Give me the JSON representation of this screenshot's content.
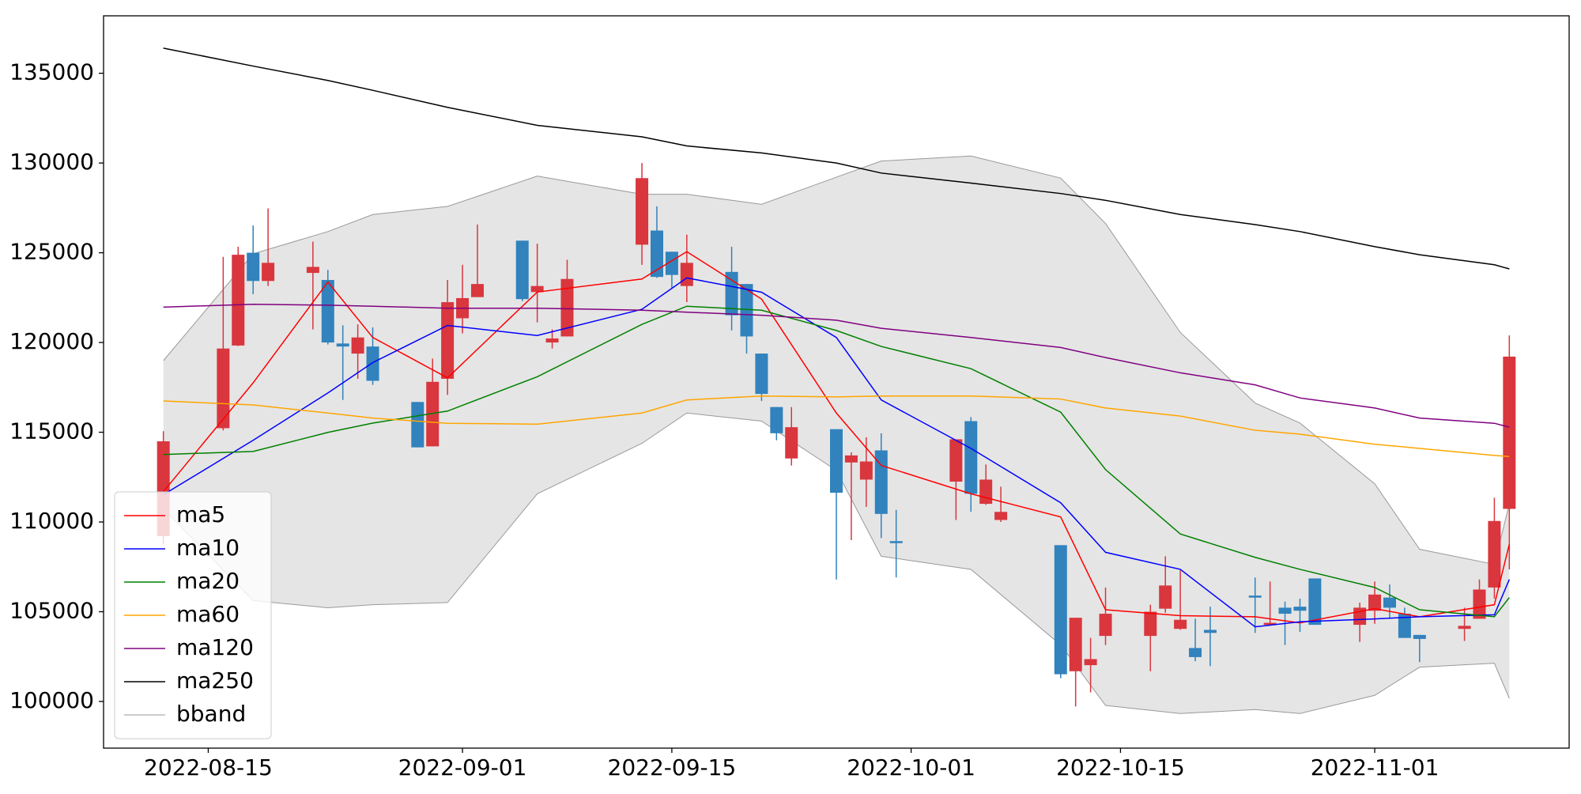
{
  "chart_data": {
    "type": "candlestick",
    "x": [
      "2022-08-12",
      "2022-08-16",
      "2022-08-17",
      "2022-08-18",
      "2022-08-19",
      "2022-08-22",
      "2022-08-23",
      "2022-08-24",
      "2022-08-25",
      "2022-08-26",
      "2022-08-29",
      "2022-08-30",
      "2022-08-31",
      "2022-09-01",
      "2022-09-02",
      "2022-09-05",
      "2022-09-06",
      "2022-09-07",
      "2022-09-08",
      "2022-09-13",
      "2022-09-14",
      "2022-09-15",
      "2022-09-16",
      "2022-09-19",
      "2022-09-20",
      "2022-09-21",
      "2022-09-22",
      "2022-09-23",
      "2022-09-26",
      "2022-09-27",
      "2022-09-28",
      "2022-09-29",
      "2022-09-30",
      "2022-10-04",
      "2022-10-05",
      "2022-10-06",
      "2022-10-07",
      "2022-10-11",
      "2022-10-12",
      "2022-10-13",
      "2022-10-14",
      "2022-10-17",
      "2022-10-18",
      "2022-10-19",
      "2022-10-20",
      "2022-10-21",
      "2022-10-24",
      "2022-10-25",
      "2022-10-26",
      "2022-10-27",
      "2022-10-28",
      "2022-10-31",
      "2022-11-01",
      "2022-11-02",
      "2022-11-03",
      "2022-11-04",
      "2022-11-07",
      "2022-11-08",
      "2022-11-09",
      "2022-11-10"
    ],
    "open": [
      109213,
      115225,
      119831,
      125000,
      123427,
      123876,
      123483,
      119944,
      119382,
      119775,
      116685,
      114213,
      117978,
      121348,
      122528,
      125674,
      122809,
      120000,
      120337,
      125449,
      126236,
      125056,
      123146,
      123933,
      123258,
      119382,
      116404,
      113539,
      115169,
      113315,
      112360,
      113989,
      108933,
      112247,
      115618,
      111011,
      110112,
      108708,
      101685,
      102022,
      103652,
      103652,
      105169,
      104045,
      102978,
      103989,
      105899,
      104270,
      105225,
      105281,
      106854,
      104270,
      105056,
      105787,
      104888,
      103708,
      104045,
      104607,
      106348,
      110730
    ],
    "high": [
      115056,
      124775,
      125337,
      126517,
      127472,
      125618,
      124045,
      120955,
      121011,
      120843,
      116685,
      119101,
      123483,
      124326,
      126573,
      125674,
      125505,
      120730,
      124607,
      130000,
      127584,
      125056,
      126011,
      125337,
      123258,
      119382,
      116404,
      116404,
      115169,
      113876,
      114719,
      114944,
      110674,
      114607,
      115843,
      113202,
      111966,
      108708,
      104663,
      103539,
      106348,
      105393,
      108090,
      107303,
      104607,
      105281,
      106910,
      106685,
      105562,
      105730,
      106854,
      105506,
      106685,
      106517,
      105225,
      103708,
      105225,
      106798,
      111348,
      120393
    ],
    "low": [
      108764,
      115100,
      119800,
      122697,
      123146,
      120730,
      119888,
      116798,
      117978,
      117641,
      114157,
      114213,
      117079,
      120506,
      122528,
      122303,
      121124,
      119663,
      120337,
      124326,
      123596,
      123034,
      122247,
      120674,
      119382,
      116742,
      114551,
      113146,
      106798,
      108989,
      110843,
      109101,
      106910,
      110112,
      110562,
      110955,
      110000,
      101292,
      99719,
      100506,
      103146,
      101685,
      104944,
      103989,
      102247,
      101966,
      103820,
      104213,
      103146,
      103876,
      104270,
      103315,
      104326,
      104607,
      103539,
      102191,
      103371,
      104607,
      105730,
      107360
    ],
    "close": [
      114494,
      119663,
      124888,
      123427,
      124438,
      124213,
      120000,
      119775,
      120281,
      117865,
      114157,
      117809,
      122247,
      122472,
      123258,
      122416,
      123146,
      120225,
      123539,
      129157,
      123652,
      123764,
      124438,
      121517,
      120337,
      117135,
      114944,
      115281,
      111629,
      113708,
      113371,
      110449,
      108820,
      114607,
      111573,
      112360,
      110562,
      101517,
      104663,
      102360,
      104888,
      105000,
      106461,
      104551,
      102472,
      103820,
      105787,
      104382,
      104888,
      105056,
      104270,
      105225,
      105955,
      105225,
      103539,
      103483,
      104213,
      106236,
      110056,
      119213
    ],
    "up_color": "#d9363e",
    "down_color": "#3182bd",
    "lines": [
      {
        "name": "ma5",
        "color": "#ff0000",
        "x": [
          "2022-08-12",
          "2022-08-18",
          "2022-08-23",
          "2022-08-26",
          "2022-08-31",
          "2022-09-06",
          "2022-09-13",
          "2022-09-16",
          "2022-09-21",
          "2022-09-26",
          "2022-09-29",
          "2022-10-05",
          "2022-10-11",
          "2022-10-14",
          "2022-10-19",
          "2022-10-24",
          "2022-10-27",
          "2022-11-01",
          "2022-11-04",
          "2022-11-09",
          "2022-11-10"
        ],
        "values": [
          111690,
          117750,
          123370,
          120280,
          118030,
          122810,
          123540,
          125060,
          122420,
          116070,
          113150,
          111570,
          110280,
          105110,
          104780,
          104720,
          104380,
          105170,
          104720,
          105390,
          108760
        ]
      },
      {
        "name": "ma10",
        "color": "#0000ff",
        "x": [
          "2022-08-12",
          "2022-08-18",
          "2022-08-23",
          "2022-08-26",
          "2022-08-31",
          "2022-09-06",
          "2022-09-13",
          "2022-09-16",
          "2022-09-21",
          "2022-09-26",
          "2022-09-29",
          "2022-10-05",
          "2022-10-11",
          "2022-10-14",
          "2022-10-19",
          "2022-10-24",
          "2022-10-27",
          "2022-11-01",
          "2022-11-04",
          "2022-11-09",
          "2022-11-10"
        ],
        "values": [
          111520,
          114550,
          117190,
          118880,
          120950,
          120390,
          121850,
          123600,
          122800,
          120280,
          116800,
          114100,
          111070,
          108310,
          107360,
          104160,
          104440,
          104600,
          104720,
          104830,
          106800
        ]
      },
      {
        "name": "ma20",
        "color": "#008000",
        "x": [
          "2022-08-12",
          "2022-08-18",
          "2022-08-23",
          "2022-08-26",
          "2022-08-31",
          "2022-09-06",
          "2022-09-13",
          "2022-09-16",
          "2022-09-21",
          "2022-09-26",
          "2022-09-29",
          "2022-10-05",
          "2022-10-11",
          "2022-10-14",
          "2022-10-19",
          "2022-10-24",
          "2022-10-27",
          "2022-11-01",
          "2022-11-04",
          "2022-11-09",
          "2022-11-10"
        ],
        "values": [
          113760,
          113930,
          114990,
          115510,
          116180,
          118090,
          121010,
          122020,
          121800,
          120670,
          119780,
          118540,
          116120,
          112920,
          109330,
          108030,
          107360,
          106350,
          105110,
          104720,
          105790
        ]
      },
      {
        "name": "ma60",
        "color": "#ffa500",
        "x": [
          "2022-08-12",
          "2022-08-18",
          "2022-08-23",
          "2022-08-26",
          "2022-08-31",
          "2022-09-06",
          "2022-09-13",
          "2022-09-16",
          "2022-09-21",
          "2022-09-26",
          "2022-09-29",
          "2022-10-05",
          "2022-10-11",
          "2022-10-14",
          "2022-10-19",
          "2022-10-24",
          "2022-10-27",
          "2022-11-01",
          "2022-11-04",
          "2022-11-09",
          "2022-11-10"
        ],
        "values": [
          116740,
          116520,
          116070,
          115790,
          115500,
          115450,
          116070,
          116800,
          117020,
          116970,
          117020,
          117020,
          116850,
          116350,
          115900,
          115110,
          114890,
          114330,
          114100,
          113710,
          113650
        ]
      },
      {
        "name": "ma120",
        "color": "#800080",
        "x": [
          "2022-08-12",
          "2022-08-18",
          "2022-08-23",
          "2022-08-26",
          "2022-08-31",
          "2022-09-06",
          "2022-09-13",
          "2022-09-16",
          "2022-09-21",
          "2022-09-26",
          "2022-09-29",
          "2022-10-05",
          "2022-10-11",
          "2022-10-14",
          "2022-10-19",
          "2022-10-24",
          "2022-10-27",
          "2022-11-01",
          "2022-11-04",
          "2022-11-09",
          "2022-11-10"
        ],
        "values": [
          121970,
          122130,
          122080,
          122020,
          121910,
          121910,
          121800,
          121690,
          121520,
          121240,
          120790,
          120280,
          119720,
          119160,
          118310,
          117640,
          116910,
          116350,
          115790,
          115500,
          115280
        ]
      },
      {
        "name": "ma250",
        "color": "#000000",
        "x": [
          "2022-08-12",
          "2022-08-18",
          "2022-08-23",
          "2022-08-26",
          "2022-08-31",
          "2022-09-06",
          "2022-09-13",
          "2022-09-16",
          "2022-09-21",
          "2022-09-26",
          "2022-09-29",
          "2022-10-05",
          "2022-10-11",
          "2022-10-14",
          "2022-10-19",
          "2022-10-24",
          "2022-10-27",
          "2022-11-01",
          "2022-11-04",
          "2022-11-09",
          "2022-11-10"
        ],
        "values": [
          136400,
          135400,
          134600,
          134050,
          133100,
          132100,
          131460,
          130950,
          130560,
          130000,
          129440,
          128880,
          128300,
          127920,
          127130,
          126570,
          126180,
          125340,
          124890,
          124330,
          124100
        ]
      }
    ],
    "bband": {
      "name": "bband",
      "color": "#999999",
      "fill": "#e5e5e5",
      "x": [
        "2022-08-12",
        "2022-08-18",
        "2022-08-23",
        "2022-08-26",
        "2022-08-31",
        "2022-09-06",
        "2022-09-13",
        "2022-09-16",
        "2022-09-21",
        "2022-09-26",
        "2022-09-29",
        "2022-10-05",
        "2022-10-11",
        "2022-10-14",
        "2022-10-19",
        "2022-10-24",
        "2022-10-27",
        "2022-11-01",
        "2022-11-04",
        "2022-11-09",
        "2022-11-10"
      ],
      "upper": [
        118990,
        124940,
        126180,
        127130,
        127580,
        129270,
        128260,
        128260,
        127700,
        129210,
        130110,
        130390,
        129160,
        126630,
        120560,
        116630,
        115510,
        112130,
        108480,
        107640,
        111010
      ],
      "lower": [
        110730,
        105620,
        105220,
        105390,
        105510,
        111570,
        114380,
        116070,
        115620,
        112870,
        108090,
        107360,
        103150,
        99780,
        99330,
        99550,
        99330,
        100340,
        101910,
        102130,
        100170
      ]
    },
    "xlim": [
      "2022-08-08",
      "2022-11-14"
    ],
    "xticks": [
      "2022-08-15",
      "2022-09-01",
      "2022-09-15",
      "2022-10-01",
      "2022-10-15",
      "2022-11-01"
    ],
    "ylim": [
      97400,
      138200
    ],
    "yticks": [
      100000,
      105000,
      110000,
      115000,
      120000,
      125000,
      130000,
      135000
    ],
    "legend": "lower left"
  }
}
